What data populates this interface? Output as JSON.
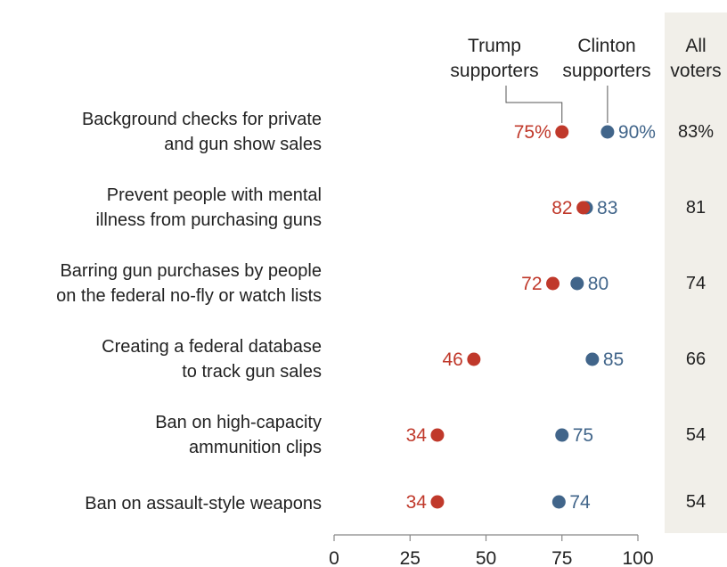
{
  "chart_data": {
    "type": "dot",
    "xlim": [
      0,
      100
    ],
    "x_ticks": [
      "0",
      "25",
      "50",
      "75",
      "100"
    ],
    "series_header": {
      "trump": [
        "Trump",
        "supporters"
      ],
      "clinton": [
        "Clinton",
        "supporters"
      ],
      "all": [
        "All",
        "voters"
      ]
    },
    "colors": {
      "trump": "#c0392b",
      "clinton": "#41658a",
      "text": "#222222",
      "axis": "#888888",
      "column_bg": "#f1efe9"
    },
    "rows": [
      {
        "label": [
          "Background checks for private",
          "and gun show sales"
        ],
        "trump": 75,
        "clinton": 90,
        "trump_label": "75%",
        "clinton_label": "90%",
        "all_label": "83%"
      },
      {
        "label": [
          "Prevent people with mental",
          "illness from purchasing guns"
        ],
        "trump": 82,
        "clinton": 83,
        "trump_label": "82",
        "clinton_label": "83",
        "all_label": "81"
      },
      {
        "label": [
          "Barring gun purchases by people",
          "on the federal no-fly or watch lists"
        ],
        "trump": 72,
        "clinton": 80,
        "trump_label": "72",
        "clinton_label": "80",
        "all_label": "74"
      },
      {
        "label": [
          "Creating a federal database",
          "to track gun sales"
        ],
        "trump": 46,
        "clinton": 85,
        "trump_label": "46",
        "clinton_label": "85",
        "all_label": "66"
      },
      {
        "label": [
          "Ban on high-capacity",
          "ammunition clips"
        ],
        "trump": 34,
        "clinton": 75,
        "trump_label": "34",
        "clinton_label": "75",
        "all_label": "54"
      },
      {
        "label": [
          "Ban on assault-style weapons"
        ],
        "trump": 34,
        "clinton": 74,
        "trump_label": "34",
        "clinton_label": "74",
        "all_label": "54"
      }
    ]
  }
}
